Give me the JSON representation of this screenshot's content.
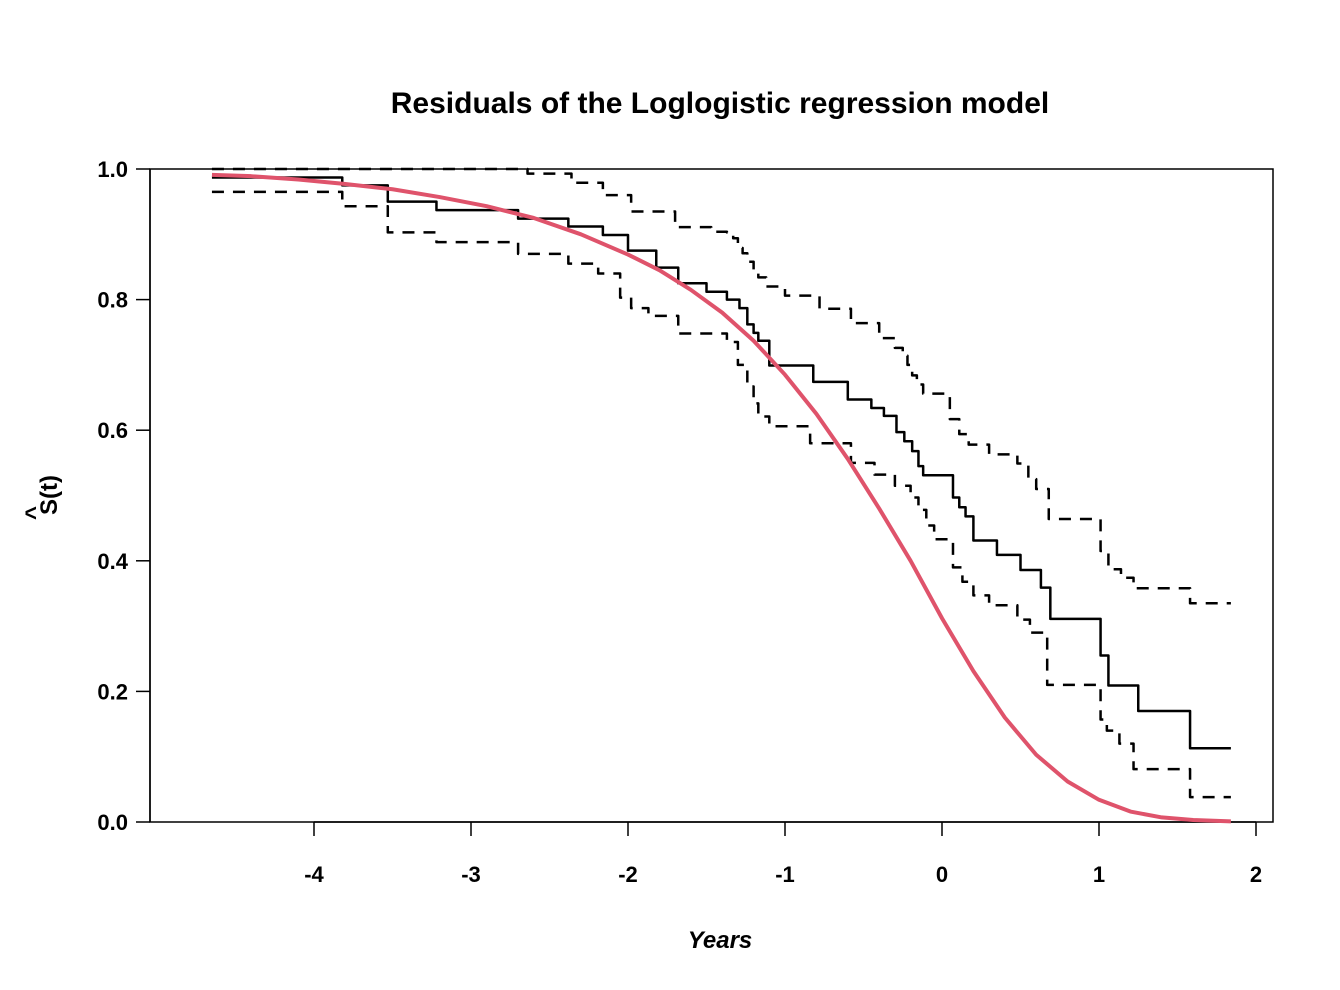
{
  "chart_data": {
    "type": "line",
    "title": "Residuals of the Loglogistic regression model",
    "xlabel": "Years",
    "ylabel_hat": "^",
    "ylabel": "S(t)",
    "xlim": [
      -4.7,
      1.9
    ],
    "ylim": [
      0.0,
      1.0
    ],
    "x_ticks": [
      -4,
      -3,
      -2,
      -1,
      0,
      1,
      2
    ],
    "x_tick_labels": [
      "-4",
      "-3",
      "-2",
      "-1",
      "0",
      "1",
      "2"
    ],
    "y_ticks": [
      0.0,
      0.2,
      0.4,
      0.6,
      0.8,
      1.0
    ],
    "y_tick_labels": [
      "0.0",
      "0.2",
      "0.4",
      "0.6",
      "0.8",
      "1.0"
    ],
    "grid": false,
    "legend": "none",
    "series": [
      {
        "style": "step-solid",
        "color": "#000000",
        "x": [
          -4.65,
          -3.82,
          -3.53,
          -3.22,
          -2.7,
          -2.38,
          -2.16,
          -2.0,
          -1.82,
          -1.68,
          -1.5,
          -1.37,
          -1.29,
          -1.24,
          -1.2,
          -1.17,
          -1.1,
          -0.82,
          -0.6,
          -0.45,
          -0.37,
          -0.29,
          -0.24,
          -0.19,
          -0.15,
          -0.12,
          -0.05,
          0.07,
          0.11,
          0.15,
          0.2,
          0.35,
          0.5,
          0.63,
          0.69,
          1.01,
          1.06,
          1.25,
          1.58,
          1.84
        ],
        "y": [
          0.987,
          0.975,
          0.95,
          0.937,
          0.924,
          0.912,
          0.899,
          0.875,
          0.849,
          0.825,
          0.812,
          0.8,
          0.787,
          0.762,
          0.749,
          0.737,
          0.699,
          0.674,
          0.647,
          0.634,
          0.622,
          0.597,
          0.583,
          0.568,
          0.545,
          0.531,
          0.531,
          0.497,
          0.482,
          0.468,
          0.431,
          0.409,
          0.386,
          0.359,
          0.311,
          0.255,
          0.209,
          0.17,
          0.113,
          0.113
        ]
      },
      {
        "style": "step-dashed",
        "color": "#000000",
        "x": [
          -4.65,
          -2.7,
          -2.64,
          -2.36,
          -2.16,
          -1.98,
          -1.7,
          -1.47,
          -1.37,
          -1.33,
          -1.3,
          -1.27,
          -1.24,
          -1.2,
          -1.17,
          -1.12,
          -1.0,
          -0.78,
          -0.58,
          -0.4,
          -0.3,
          -0.25,
          -0.22,
          -0.19,
          -0.16,
          -0.12,
          -0.05,
          0.05,
          0.11,
          0.17,
          0.3,
          0.48,
          0.55,
          0.6,
          0.68,
          1.01,
          1.06,
          1.14,
          1.22,
          1.5,
          1.58,
          1.84
        ],
        "y": [
          1.0,
          1.0,
          0.993,
          0.979,
          0.96,
          0.935,
          0.911,
          0.904,
          0.903,
          0.894,
          0.879,
          0.871,
          0.858,
          0.846,
          0.834,
          0.82,
          0.806,
          0.786,
          0.764,
          0.741,
          0.726,
          0.714,
          0.7,
          0.684,
          0.67,
          0.656,
          0.656,
          0.617,
          0.594,
          0.578,
          0.563,
          0.549,
          0.525,
          0.51,
          0.464,
          0.415,
          0.387,
          0.374,
          0.358,
          0.358,
          0.335,
          0.335
        ]
      },
      {
        "style": "step-dashed",
        "color": "#000000",
        "x": [
          -4.65,
          -3.82,
          -3.53,
          -3.22,
          -2.7,
          -2.38,
          -2.19,
          -2.05,
          -1.98,
          -1.87,
          -1.68,
          -1.37,
          -1.3,
          -1.24,
          -1.2,
          -1.17,
          -1.1,
          -0.84,
          -0.58,
          -0.43,
          -0.3,
          -0.2,
          -0.15,
          -0.1,
          -0.05,
          0.07,
          0.13,
          0.2,
          0.3,
          0.48,
          0.56,
          0.67,
          1.01,
          1.05,
          1.13,
          1.22,
          1.58,
          1.84
        ],
        "y": [
          0.965,
          0.943,
          0.903,
          0.888,
          0.87,
          0.855,
          0.84,
          0.803,
          0.787,
          0.775,
          0.748,
          0.735,
          0.7,
          0.667,
          0.641,
          0.621,
          0.606,
          0.58,
          0.55,
          0.532,
          0.515,
          0.497,
          0.478,
          0.454,
          0.433,
          0.39,
          0.368,
          0.347,
          0.332,
          0.31,
          0.29,
          0.21,
          0.157,
          0.14,
          0.12,
          0.081,
          0.038,
          0.038
        ]
      },
      {
        "style": "smooth",
        "color": "#DF536B",
        "x": [
          -4.65,
          -4.4,
          -4.1,
          -3.8,
          -3.5,
          -3.2,
          -2.9,
          -2.6,
          -2.3,
          -2.0,
          -1.8,
          -1.6,
          -1.4,
          -1.2,
          -1.0,
          -0.8,
          -0.6,
          -0.4,
          -0.2,
          0.0,
          0.2,
          0.4,
          0.6,
          0.8,
          1.0,
          1.2,
          1.4,
          1.6,
          1.84
        ],
        "y": [
          0.991,
          0.989,
          0.984,
          0.977,
          0.969,
          0.957,
          0.943,
          0.925,
          0.9,
          0.869,
          0.845,
          0.815,
          0.78,
          0.737,
          0.685,
          0.625,
          0.556,
          0.48,
          0.4,
          0.312,
          0.231,
          0.16,
          0.103,
          0.062,
          0.034,
          0.016,
          0.007,
          0.003,
          0.001
        ]
      }
    ]
  }
}
